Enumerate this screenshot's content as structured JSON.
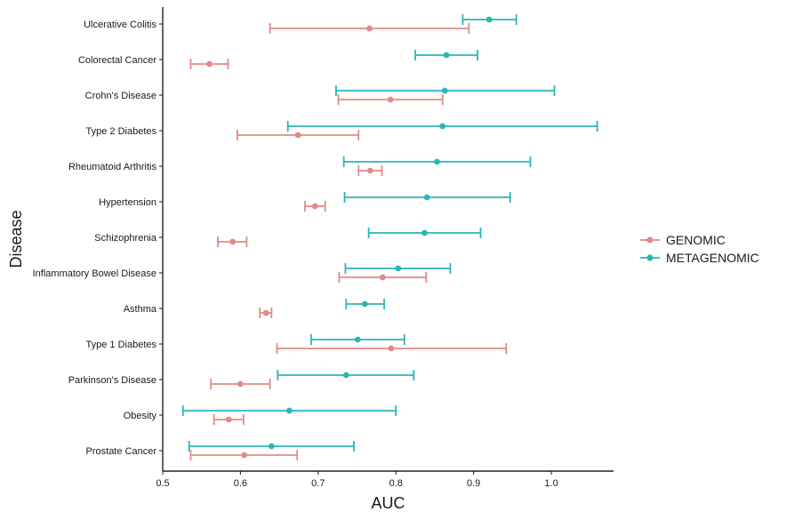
{
  "chart_data": {
    "type": "errorbar-dot",
    "xlabel": "AUC",
    "ylabel": "Disease",
    "xlim": [
      0.5,
      1.08
    ],
    "xticks": [
      0.5,
      0.6,
      0.7,
      0.8,
      0.9,
      1.0
    ],
    "xtick_labels": [
      "0.5",
      "0.6",
      "0.7",
      "0.8",
      "0.9",
      "1.0"
    ],
    "categories": [
      "Ulcerative Colitis",
      "Colorectal Cancer",
      "Crohn's Disease",
      "Type 2 Diabetes",
      "Rheumatoid Arthritis",
      "Hypertension",
      "Schizophrenia",
      "Inflammatory Bowel Disease",
      "Asthma",
      "Type 1 Diabetes",
      "Parkinson's Disease",
      "Obesity",
      "Prostate Cancer"
    ],
    "legend_position": "right",
    "series": [
      {
        "name": "GENOMIC",
        "color": "#E08B85",
        "points": [
          {
            "category": "Ulcerative Colitis",
            "value": 0.766,
            "low": 0.638,
            "high": 0.894
          },
          {
            "category": "Colorectal Cancer",
            "value": 0.56,
            "low": 0.536,
            "high": 0.584
          },
          {
            "category": "Crohn's Disease",
            "value": 0.793,
            "low": 0.726,
            "high": 0.86
          },
          {
            "category": "Type 2 Diabetes",
            "value": 0.674,
            "low": 0.596,
            "high": 0.752
          },
          {
            "category": "Rheumatoid Arthritis",
            "value": 0.767,
            "low": 0.752,
            "high": 0.782
          },
          {
            "category": "Hypertension",
            "value": 0.696,
            "low": 0.683,
            "high": 0.709
          },
          {
            "category": "Schizophrenia",
            "value": 0.59,
            "low": 0.571,
            "high": 0.608
          },
          {
            "category": "Inflammatory Bowel Disease",
            "value": 0.783,
            "low": 0.727,
            "high": 0.839
          },
          {
            "category": "Asthma",
            "value": 0.633,
            "low": 0.625,
            "high": 0.64
          },
          {
            "category": "Type 1 Diabetes",
            "value": 0.794,
            "low": 0.647,
            "high": 0.942
          },
          {
            "category": "Parkinson's Disease",
            "value": 0.6,
            "low": 0.562,
            "high": 0.638
          },
          {
            "category": "Obesity",
            "value": 0.585,
            "low": 0.566,
            "high": 0.604
          },
          {
            "category": "Prostate Cancer",
            "value": 0.605,
            "low": 0.536,
            "high": 0.673
          }
        ]
      },
      {
        "name": "METAGENOMIC",
        "color": "#2BB5B5",
        "points": [
          {
            "category": "Ulcerative Colitis",
            "value": 0.92,
            "low": 0.886,
            "high": 0.955
          },
          {
            "category": "Colorectal Cancer",
            "value": 0.865,
            "low": 0.825,
            "high": 0.905
          },
          {
            "category": "Crohn's Disease",
            "value": 0.863,
            "low": 0.723,
            "high": 1.004
          },
          {
            "category": "Type 2 Diabetes",
            "value": 0.86,
            "low": 0.661,
            "high": 1.059
          },
          {
            "category": "Rheumatoid Arthritis",
            "value": 0.853,
            "low": 0.733,
            "high": 0.973
          },
          {
            "category": "Hypertension",
            "value": 0.84,
            "low": 0.734,
            "high": 0.947
          },
          {
            "category": "Schizophrenia",
            "value": 0.837,
            "low": 0.765,
            "high": 0.909
          },
          {
            "category": "Inflammatory Bowel Disease",
            "value": 0.803,
            "low": 0.735,
            "high": 0.87
          },
          {
            "category": "Asthma",
            "value": 0.76,
            "low": 0.736,
            "high": 0.785
          },
          {
            "category": "Type 1 Diabetes",
            "value": 0.751,
            "low": 0.691,
            "high": 0.811
          },
          {
            "category": "Parkinson's Disease",
            "value": 0.736,
            "low": 0.648,
            "high": 0.823
          },
          {
            "category": "Obesity",
            "value": 0.663,
            "low": 0.526,
            "high": 0.8
          },
          {
            "category": "Prostate Cancer",
            "value": 0.64,
            "low": 0.534,
            "high": 0.746
          }
        ]
      }
    ]
  }
}
